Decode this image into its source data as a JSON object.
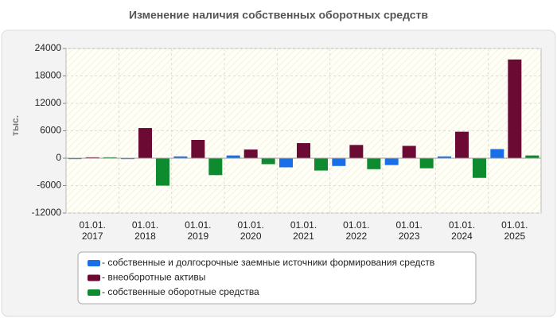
{
  "chart_data": {
    "type": "bar",
    "title": "Изменение наличия собственных оборотных средств",
    "y_label": "тыс.",
    "categories": [
      "01.01.\n2017",
      "01.01.\n2018",
      "01.01.\n2019",
      "01.01.\n2020",
      "01.01.\n2021",
      "01.01.\n2022",
      "01.01.\n2023",
      "01.01.\n2024",
      "01.01.\n2025"
    ],
    "series": [
      {
        "name": "- собственные и долгосрочные заемные источники формирования средств",
        "color": "#1a6fe8",
        "values": [
          -200,
          -200,
          400,
          600,
          -2000,
          -1700,
          -1500,
          400,
          2000
        ]
      },
      {
        "name": "- внеоборотные активы",
        "color": "#6b0a33",
        "values": [
          200,
          6600,
          4000,
          1900,
          3300,
          2900,
          2700,
          5800,
          21600
        ]
      },
      {
        "name": "- собственные оборотные средства",
        "color": "#0e8a2f",
        "values": [
          200,
          -6000,
          -3700,
          -1300,
          -2700,
          -2400,
          -2200,
          -4300,
          600
        ]
      }
    ],
    "ylim": [
      -12000,
      24000
    ],
    "yticks": [
      -12000,
      -6000,
      0,
      6000,
      12000,
      18000,
      24000
    ],
    "grid": true
  }
}
